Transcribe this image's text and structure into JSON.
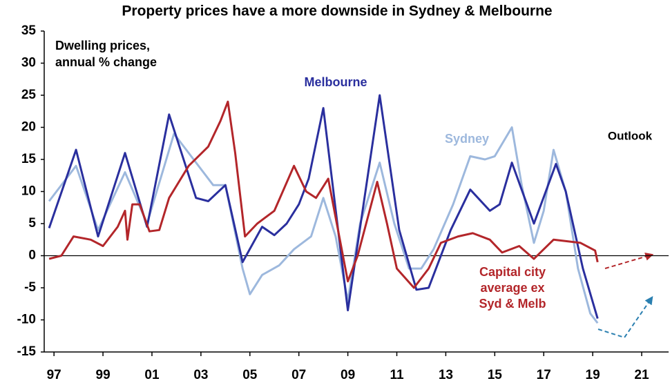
{
  "chart_data": {
    "type": "line",
    "title": "Property prices have a more downside in Sydney & Melbourne",
    "ylabel_lines": [
      "Dwelling prices,",
      "annual % change"
    ],
    "annotations": [
      "Outlook"
    ],
    "xlim": [
      1996.6,
      2022.1
    ],
    "ylim": [
      -15,
      35
    ],
    "yticks": [
      -15,
      -10,
      -5,
      0,
      5,
      10,
      15,
      20,
      25,
      30,
      35
    ],
    "xticks": [
      {
        "value": 1997,
        "label": "97"
      },
      {
        "value": 1999,
        "label": "99"
      },
      {
        "value": 2001,
        "label": "01"
      },
      {
        "value": 2003,
        "label": "03"
      },
      {
        "value": 2005,
        "label": "05"
      },
      {
        "value": 2007,
        "label": "07"
      },
      {
        "value": 2009,
        "label": "09"
      },
      {
        "value": 2011,
        "label": "11"
      },
      {
        "value": 2013,
        "label": "13"
      },
      {
        "value": 2015,
        "label": "15"
      },
      {
        "value": 2017,
        "label": "17"
      },
      {
        "value": 2019,
        "label": "19"
      },
      {
        "value": 2021,
        "label": "21"
      }
    ],
    "series": [
      {
        "name": "Sydney",
        "color": "#9db8dd",
        "x": [
          1996.8,
          1997.9,
          1998.8,
          1999.9,
          2000.8,
          2001.9,
          2002.7,
          2003.5,
          2004.0,
          2004.7,
          2005.0,
          2005.5,
          2006.2,
          2006.8,
          2007.5,
          2008.0,
          2008.5,
          2009.0,
          2009.5,
          2010.3,
          2010.9,
          2011.5,
          2012.0,
          2012.5,
          2013.3,
          2014.0,
          2014.6,
          2015.0,
          2015.7,
          2016.1,
          2016.6,
          2017.0,
          2017.4,
          2017.9,
          2018.4,
          2018.9,
          2019.2
        ],
        "values": [
          8.5,
          14,
          4,
          13,
          5,
          19,
          15,
          11,
          11,
          -2,
          -6,
          -3,
          -1.5,
          1,
          3,
          9,
          3,
          -7,
          5,
          14.5,
          5,
          -2,
          -2,
          1,
          8,
          15.5,
          15,
          15.5,
          20,
          11,
          2,
          7,
          16.5,
          10,
          -2,
          -9,
          -10.5
        ]
      },
      {
        "name": "Melbourne",
        "color": "#2a2f9e",
        "x": [
          1996.8,
          1997.9,
          1998.8,
          1999.9,
          2000.8,
          2001.7,
          2002.8,
          2003.3,
          2004.0,
          2004.7,
          2005.5,
          2006.0,
          2006.5,
          2007.0,
          2007.4,
          2008.0,
          2009.0,
          2010.3,
          2011.1,
          2011.8,
          2012.3,
          2013.2,
          2014.0,
          2014.8,
          2015.2,
          2015.7,
          2016.6,
          2017.5,
          2017.9,
          2018.6,
          2019.2
        ],
        "values": [
          4.3,
          16.5,
          3,
          16,
          4.5,
          22,
          9,
          8.5,
          11,
          -1,
          4.5,
          3.2,
          5,
          8,
          12,
          23,
          -8.5,
          25,
          4,
          -5.3,
          -5,
          4,
          10.3,
          7,
          8,
          14.5,
          5,
          14.3,
          10,
          -2,
          -9.8
        ]
      },
      {
        "label_lines": [
          "Capital city",
          "average ex",
          "Syd & Melb"
        ],
        "color": "#b3262a",
        "x": [
          1996.8,
          1997.3,
          1997.8,
          1998.5,
          1999.0,
          1999.6,
          1999.9,
          2000.0,
          2000.2,
          2000.5,
          2000.9,
          2001.3,
          2001.7,
          2002.5,
          2003.3,
          2003.8,
          2004.1,
          2004.4,
          2004.8,
          2005.3,
          2006.0,
          2006.8,
          2007.3,
          2007.7,
          2008.2,
          2008.6,
          2009.0,
          2009.4,
          2010.2,
          2010.6,
          2011.0,
          2011.7,
          2012.3,
          2012.8,
          2013.5,
          2014.1,
          2014.8,
          2015.3,
          2016.0,
          2016.6,
          2017.4,
          2018.5,
          2019.1,
          2019.2
        ],
        "values": [
          -0.5,
          0,
          3,
          2.5,
          1.5,
          4.5,
          7,
          2.5,
          8,
          8,
          3.8,
          4,
          9,
          14,
          17,
          21,
          24,
          16,
          3,
          5,
          7,
          14,
          10,
          9,
          12,
          4,
          -4,
          0,
          11.5,
          5,
          -2,
          -5,
          -2,
          2,
          3,
          3.5,
          2.5,
          0.5,
          1.5,
          -0.5,
          2.5,
          2,
          0.8,
          -1
        ]
      }
    ]
  }
}
